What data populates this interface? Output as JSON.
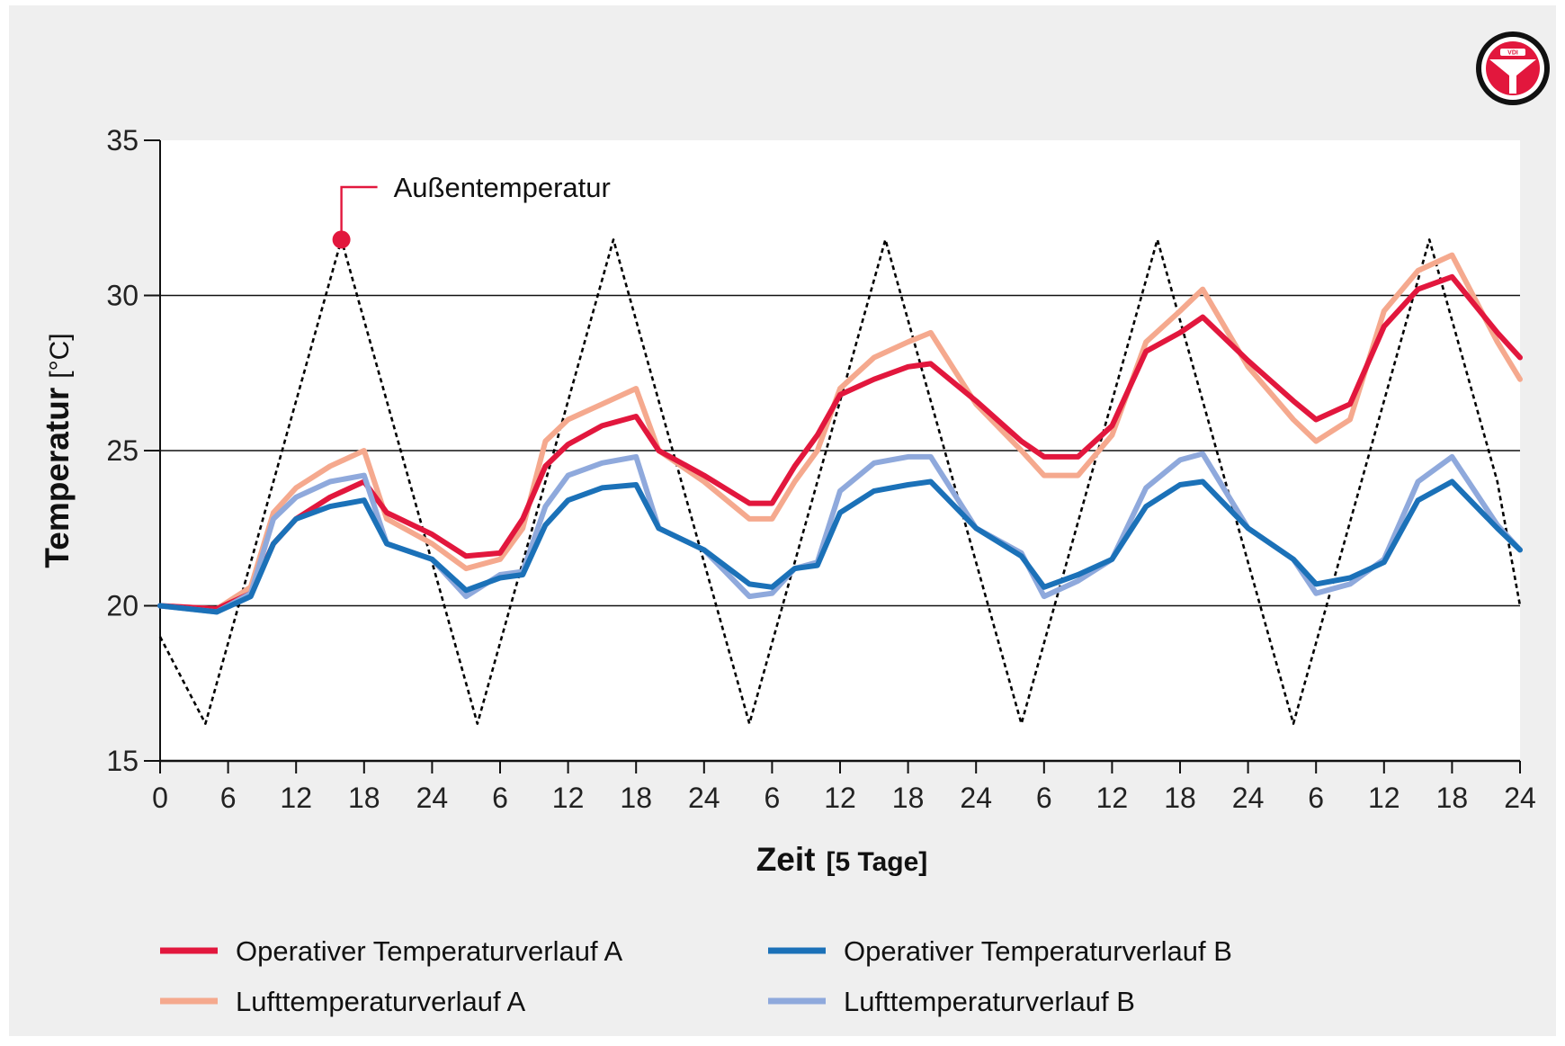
{
  "logo": {
    "icon": "vdi-seal-icon",
    "text": "VDI"
  },
  "annotation": {
    "label": "Außentemperatur"
  },
  "chart_data": {
    "type": "line",
    "xlabel": "Zeit",
    "xlabel_unit": "[5 Tage]",
    "ylabel": "Temperatur",
    "ylabel_unit": "[°C]",
    "xlim": [
      0,
      120
    ],
    "ylim": [
      15,
      35
    ],
    "x_ticks": [
      0,
      6,
      12,
      18,
      24,
      30,
      36,
      42,
      48,
      54,
      60,
      66,
      72,
      78,
      84,
      90,
      96,
      102,
      108,
      114,
      120
    ],
    "x_tick_labels": [
      "0",
      "6",
      "12",
      "18",
      "24",
      "6",
      "12",
      "18",
      "24",
      "6",
      "12",
      "18",
      "24",
      "6",
      "12",
      "18",
      "24",
      "6",
      "12",
      "18",
      "24"
    ],
    "y_ticks": [
      15,
      20,
      25,
      30,
      35
    ],
    "y_gridlines": [
      20,
      25,
      30
    ],
    "legend_position": "bottom",
    "series": [
      {
        "name": "Außentemperatur",
        "color": "#000000",
        "style": "dotted",
        "in_legend": false,
        "x": [
          0,
          4,
          10,
          16,
          22,
          28,
          34,
          40,
          46,
          52,
          58,
          64,
          70,
          76,
          82,
          88,
          94,
          100,
          106,
          112,
          118,
          120
        ],
        "y": [
          19,
          16.2,
          24,
          31.8,
          24,
          16.2,
          24,
          31.8,
          24,
          16.2,
          24,
          31.8,
          24,
          16.2,
          24,
          31.8,
          24,
          16.2,
          24,
          31.8,
          24,
          20
        ]
      },
      {
        "name": "Lufttemperaturverlauf A",
        "color": "#f5a98e",
        "style": "solid",
        "in_legend": true,
        "x": [
          0,
          5,
          8,
          10,
          12,
          15,
          18,
          20,
          24,
          27,
          30,
          32,
          34,
          36,
          39,
          42,
          44,
          48,
          52,
          54,
          56,
          58,
          60,
          63,
          66,
          68,
          72,
          76,
          78,
          81,
          84,
          87,
          90,
          92,
          96,
          100,
          102,
          105,
          108,
          111,
          114,
          118,
          120
        ],
        "y": [
          20,
          19.9,
          20.6,
          23,
          23.8,
          24.5,
          25,
          22.8,
          22,
          21.2,
          21.5,
          22.5,
          25.3,
          26,
          26.5,
          27,
          25,
          24,
          22.8,
          22.8,
          24,
          25,
          27,
          28,
          28.5,
          28.8,
          26.5,
          25,
          24.2,
          24.2,
          25.5,
          28.5,
          29.5,
          30.2,
          27.7,
          26,
          25.3,
          26,
          29.5,
          30.8,
          31.3,
          28.5,
          27.3
        ]
      },
      {
        "name": "Operativer Temperaturverlauf A",
        "color": "#e2173d",
        "style": "solid",
        "in_legend": true,
        "x": [
          0,
          5,
          8,
          10,
          12,
          15,
          18,
          20,
          24,
          27,
          30,
          32,
          34,
          36,
          39,
          42,
          44,
          48,
          52,
          54,
          56,
          58,
          60,
          63,
          66,
          68,
          72,
          76,
          78,
          81,
          84,
          87,
          90,
          92,
          96,
          100,
          102,
          105,
          108,
          111,
          114,
          118,
          120
        ],
        "y": [
          20,
          19.9,
          20.4,
          22,
          22.8,
          23.5,
          24,
          23,
          22.3,
          21.6,
          21.7,
          22.8,
          24.5,
          25.2,
          25.8,
          26.1,
          25,
          24.2,
          23.3,
          23.3,
          24.5,
          25.5,
          26.8,
          27.3,
          27.7,
          27.8,
          26.6,
          25.3,
          24.8,
          24.8,
          25.8,
          28.2,
          28.8,
          29.3,
          27.9,
          26.6,
          26,
          26.5,
          29,
          30.2,
          30.6,
          28.8,
          28
        ]
      },
      {
        "name": "Lufttemperaturverlauf B",
        "color": "#8fa9dc",
        "style": "solid",
        "in_legend": true,
        "x": [
          0,
          5,
          8,
          10,
          12,
          15,
          18,
          20,
          24,
          27,
          30,
          32,
          34,
          36,
          39,
          42,
          44,
          48,
          52,
          54,
          56,
          58,
          60,
          63,
          66,
          68,
          72,
          76,
          78,
          81,
          84,
          87,
          90,
          92,
          96,
          100,
          102,
          105,
          108,
          111,
          114,
          118,
          120
        ],
        "y": [
          20,
          19.8,
          20.4,
          22.8,
          23.5,
          24,
          24.2,
          22,
          21.5,
          20.3,
          21,
          21.1,
          23.2,
          24.2,
          24.6,
          24.8,
          22.5,
          21.8,
          20.3,
          20.4,
          21.2,
          21.4,
          23.7,
          24.6,
          24.8,
          24.8,
          22.5,
          21.7,
          20.3,
          20.8,
          21.5,
          23.8,
          24.7,
          24.9,
          22.5,
          21.5,
          20.4,
          20.7,
          21.5,
          24,
          24.8,
          22.6,
          21.8
        ]
      },
      {
        "name": "Operativer Temperaturverlauf B",
        "color": "#1b71b8",
        "style": "solid",
        "in_legend": true,
        "x": [
          0,
          5,
          8,
          10,
          12,
          15,
          18,
          20,
          24,
          27,
          30,
          32,
          34,
          36,
          39,
          42,
          44,
          48,
          52,
          54,
          56,
          58,
          60,
          63,
          66,
          68,
          72,
          76,
          78,
          81,
          84,
          87,
          90,
          92,
          96,
          100,
          102,
          105,
          108,
          111,
          114,
          118,
          120
        ],
        "y": [
          20,
          19.8,
          20.3,
          22,
          22.8,
          23.2,
          23.4,
          22,
          21.5,
          20.5,
          20.9,
          21,
          22.6,
          23.4,
          23.8,
          23.9,
          22.5,
          21.8,
          20.7,
          20.6,
          21.2,
          21.3,
          23,
          23.7,
          23.9,
          24,
          22.5,
          21.6,
          20.6,
          21,
          21.5,
          23.2,
          23.9,
          24,
          22.5,
          21.5,
          20.7,
          20.9,
          21.4,
          23.4,
          24,
          22.5,
          21.8
        ]
      }
    ]
  }
}
